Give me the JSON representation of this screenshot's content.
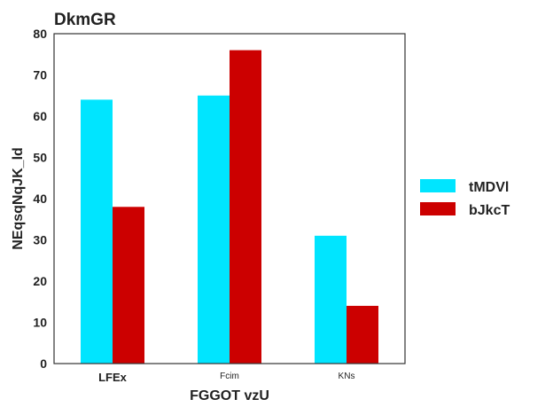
{
  "chart_data": {
    "type": "bar",
    "title": "DkmGR",
    "xlabel": "FGGOT vzU",
    "ylabel": "NEqsqNqJK_ld",
    "categories": [
      "LFEx",
      "Fcim",
      "KNs"
    ],
    "category_label_style": [
      "bold",
      "small",
      "small"
    ],
    "series": [
      {
        "name": "tMDVl",
        "values": [
          64,
          65,
          31
        ],
        "color": "#00e5ff"
      },
      {
        "name": "bJkcT",
        "values": [
          38,
          76,
          14
        ],
        "color": "#cc0000"
      }
    ],
    "ylim": [
      0,
      80
    ],
    "yticks": [
      0,
      10,
      20,
      30,
      40,
      50,
      60,
      70,
      80
    ],
    "grid": false,
    "legend_position": "right"
  }
}
